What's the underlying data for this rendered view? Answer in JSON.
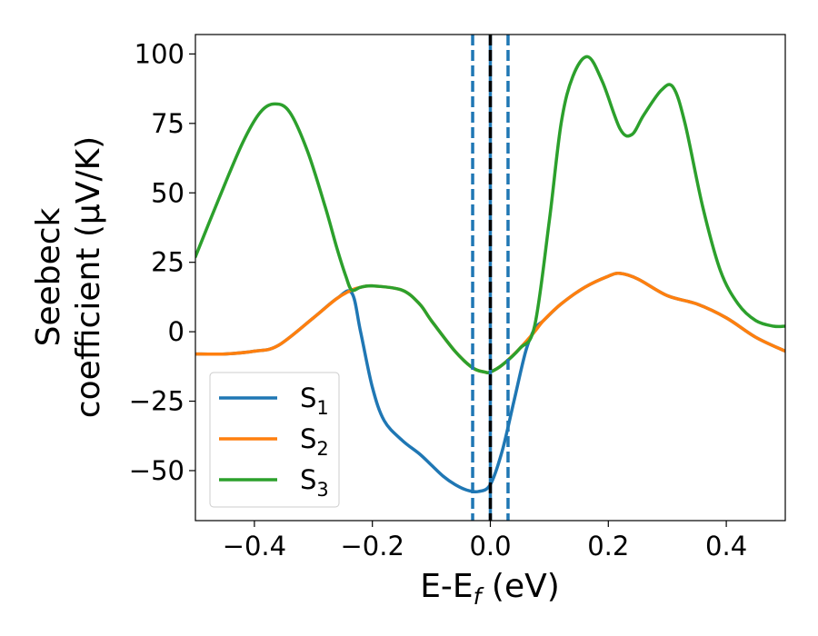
{
  "chart_data": {
    "type": "line",
    "xlabel": "E-E",
    "xlabel_sub": "f",
    "xlabel_unit": " (eV)",
    "ylabel_line1": "Seebeck",
    "ylabel_line2": "coefficient  (μV/K)",
    "xlim": [
      -0.5,
      0.5
    ],
    "ylim": [
      -68,
      107
    ],
    "xticks": [
      -0.4,
      -0.2,
      0.0,
      0.2,
      0.4
    ],
    "xtick_labels": [
      "−0.4",
      "−0.2",
      "0.0",
      "0.2",
      "0.4"
    ],
    "yticks": [
      -50,
      -25,
      0,
      25,
      50,
      75,
      100
    ],
    "ytick_labels": [
      "−50",
      "−25",
      "0",
      "25",
      "50",
      "75",
      "100"
    ],
    "grid": false,
    "legend_position": "lower-left",
    "vlines": [
      {
        "x": -0.03,
        "style": "dashed",
        "color": "#1f77b4"
      },
      {
        "x": 0.03,
        "style": "dashed",
        "color": "#1f77b4"
      },
      {
        "x": 0.0,
        "style": "solid",
        "color": "#1f77b4"
      },
      {
        "x": 0.0,
        "style": "dashed",
        "color": "#000000"
      }
    ],
    "series": [
      {
        "name": "S",
        "sub": "1",
        "color": "#1f77b4",
        "x": [
          -0.5,
          -0.45,
          -0.4,
          -0.36,
          -0.3,
          -0.26,
          -0.235,
          -0.22,
          -0.2,
          -0.18,
          -0.15,
          -0.12,
          -0.1,
          -0.08,
          -0.06,
          -0.04,
          -0.02,
          0.0,
          0.02,
          0.04,
          0.06,
          0.075,
          0.09,
          0.12,
          0.16,
          0.2,
          0.22,
          0.25,
          0.3,
          0.35,
          0.4,
          0.45,
          0.5
        ],
        "y": [
          -8,
          -8,
          -7,
          -5,
          5,
          12,
          14,
          0,
          -20,
          -32,
          -39,
          -44,
          -48,
          -52,
          -55,
          -57,
          -57.5,
          -55,
          -43,
          -25,
          -7,
          1,
          4,
          10,
          16,
          20,
          21,
          19,
          13,
          10,
          5,
          -2,
          -7
        ]
      },
      {
        "name": "S",
        "sub": "2",
        "color": "#ff7f0e",
        "x": [
          -0.5,
          -0.45,
          -0.4,
          -0.36,
          -0.3,
          -0.26,
          -0.235,
          -0.22,
          -0.2,
          -0.15,
          -0.12,
          -0.1,
          -0.06,
          -0.03,
          -0.01,
          0.0,
          0.02,
          0.05,
          0.075,
          0.09,
          0.12,
          0.16,
          0.2,
          0.22,
          0.25,
          0.3,
          0.35,
          0.4,
          0.45,
          0.5
        ],
        "y": [
          -8,
          -8,
          -7,
          -5,
          5,
          12,
          15,
          16,
          16.5,
          15,
          10,
          4,
          -7,
          -13,
          -14.5,
          -14.5,
          -12,
          -6,
          0,
          4,
          10,
          16,
          20,
          21,
          19,
          13,
          10,
          5,
          -2,
          -7
        ]
      },
      {
        "name": "S",
        "sub": "3",
        "color": "#2ca02c",
        "x": [
          -0.5,
          -0.46,
          -0.42,
          -0.39,
          -0.365,
          -0.34,
          -0.31,
          -0.28,
          -0.26,
          -0.245,
          -0.235,
          -0.22,
          -0.2,
          -0.15,
          -0.12,
          -0.1,
          -0.06,
          -0.03,
          -0.01,
          0.0,
          0.02,
          0.05,
          0.075,
          0.1,
          0.12,
          0.14,
          0.165,
          0.19,
          0.22,
          0.24,
          0.26,
          0.29,
          0.31,
          0.33,
          0.36,
          0.39,
          0.42,
          0.45,
          0.48,
          0.5
        ],
        "y": [
          27,
          48,
          68,
          79,
          82,
          79,
          65,
          45,
          30,
          20,
          15,
          16,
          16.5,
          15,
          10,
          4,
          -7,
          -13,
          -14.5,
          -14.5,
          -12,
          -6,
          2,
          40,
          75,
          92,
          99,
          90,
          73,
          71,
          78,
          87,
          88,
          75,
          45,
          22,
          10,
          4,
          2,
          2
        ]
      }
    ]
  }
}
